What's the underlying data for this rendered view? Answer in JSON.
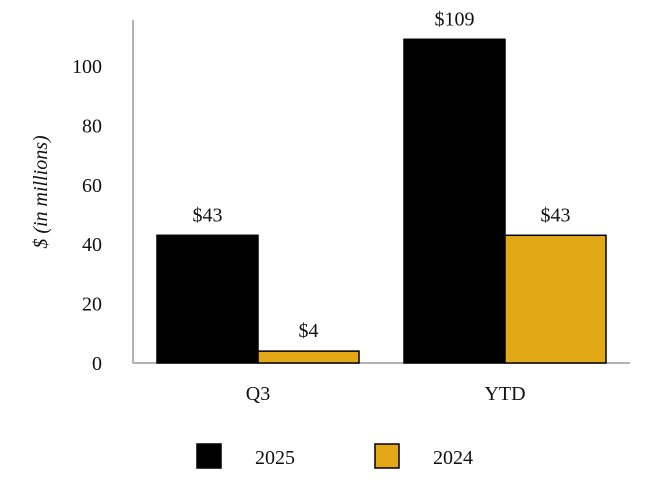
{
  "chart_data": {
    "type": "bar",
    "title": "",
    "xlabel": "",
    "ylabel": "$ (in millions)",
    "categories": [
      "Q3",
      "YTD"
    ],
    "ylim": [
      0,
      110
    ],
    "yticks": [
      0,
      20,
      40,
      60,
      80,
      100
    ],
    "grid": false,
    "legend_position": "bottom",
    "series": [
      {
        "name": "2025",
        "values": [
          43,
          109
        ],
        "labels": [
          "$43",
          "$109"
        ],
        "color": "#000000"
      },
      {
        "name": "2024",
        "values": [
          4,
          43
        ],
        "labels": [
          "$4",
          "$43"
        ],
        "color": "#E3A815"
      }
    ]
  }
}
